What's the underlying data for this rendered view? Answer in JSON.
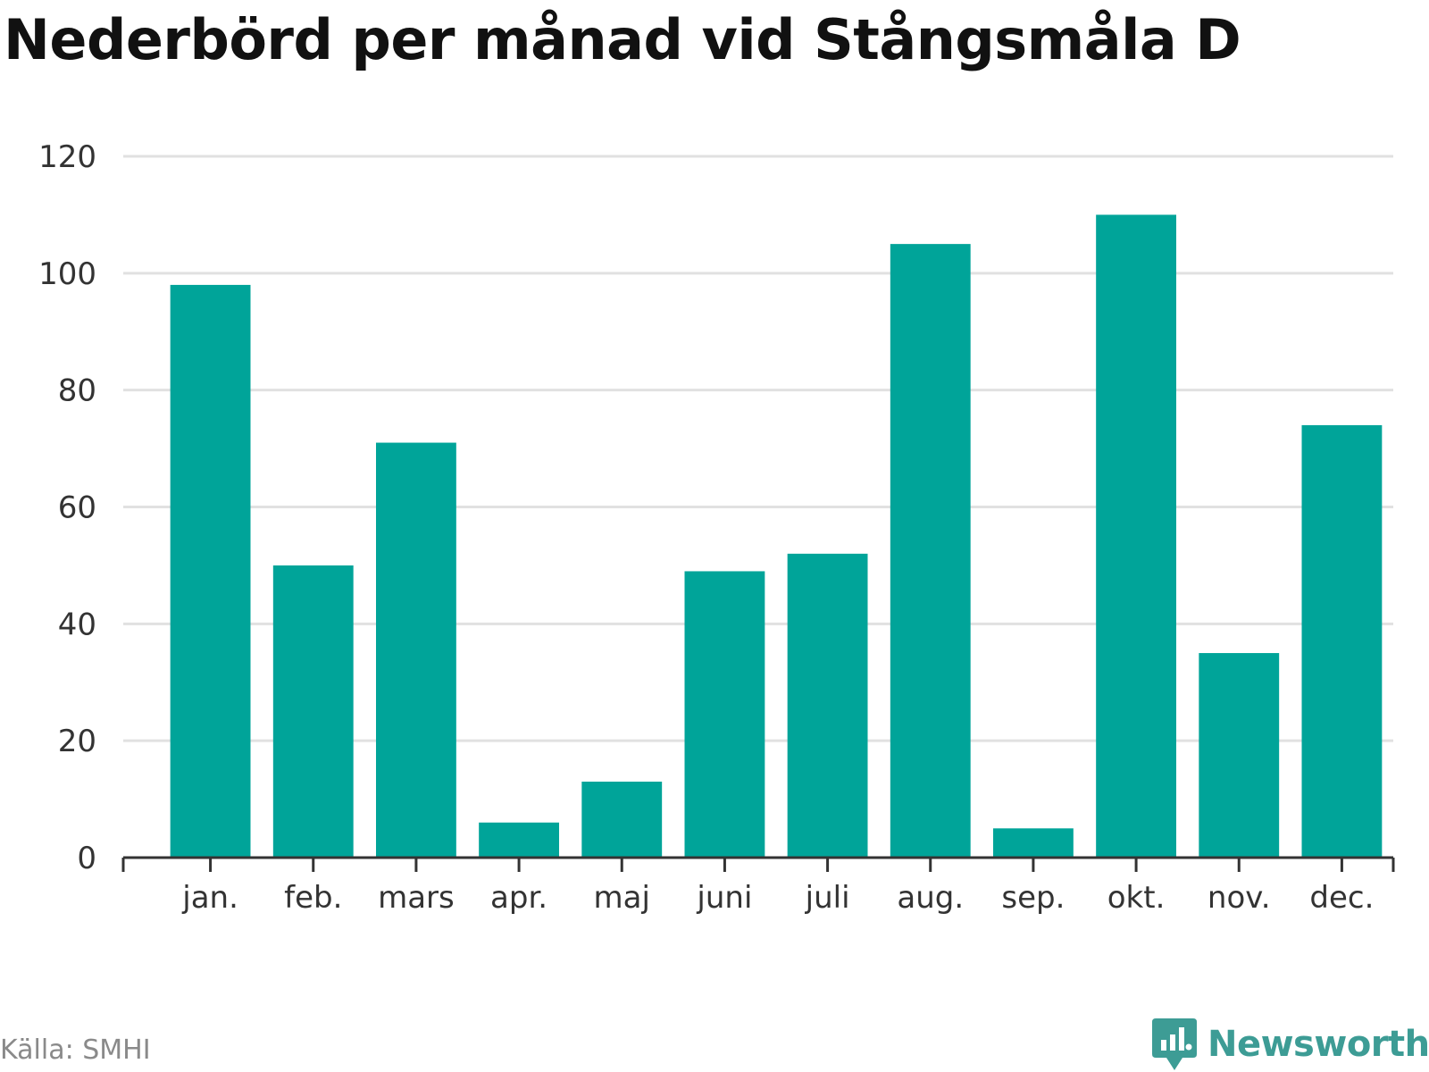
{
  "title": "Nederbörd per månad vid Stångsmåla D",
  "source": "Källa: SMHI",
  "brand": {
    "name": "Newsworthy",
    "icon": "newsworthy-logo-icon",
    "color": "#3d9c95"
  },
  "colors": {
    "bar": "#00a499",
    "grid": "#e1e1e1",
    "axis": "#333333",
    "tick_text": "#333333"
  },
  "chart_data": {
    "type": "bar",
    "title": "Nederbörd per månad vid Stångsmåla D",
    "xlabel": "",
    "ylabel": "",
    "categories": [
      "jan.",
      "feb.",
      "mars",
      "apr.",
      "maj",
      "juni",
      "juli",
      "aug.",
      "sep.",
      "okt.",
      "nov.",
      "dec."
    ],
    "values": [
      98,
      50,
      71,
      6,
      13,
      49,
      52,
      105,
      5,
      110,
      35,
      74
    ],
    "ylim": [
      0,
      120
    ],
    "yticks": [
      0,
      20,
      40,
      60,
      80,
      100,
      120
    ],
    "grid": true,
    "legend": "none"
  }
}
